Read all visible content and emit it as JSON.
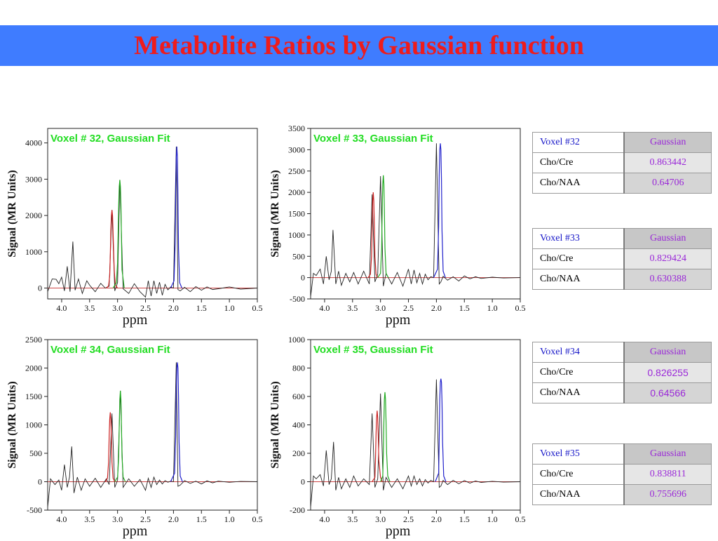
{
  "slide": {
    "title": "Metabolite Ratios by Gaussian function",
    "colors": {
      "banner": "#3f7cff",
      "title": "#ee1c1c",
      "fit_title": "#22dd22",
      "cho_peak": "#cc2222",
      "cre_peak": "#22aa22",
      "naa_peak": "#2222cc",
      "baseline": "#cc4444"
    }
  },
  "chart_data": [
    {
      "type": "line",
      "title": "Voxel # 32, Gaussian Fit",
      "xlabel": "ppm",
      "ylabel": "Signal (MR Units)",
      "xlim": [
        4.25,
        0.5
      ],
      "x_reversed": true,
      "ylim": [
        -300,
        4400
      ],
      "yticks": [
        0,
        1000,
        2000,
        3000,
        4000
      ],
      "xticks": [
        4.0,
        3.5,
        3.0,
        2.5,
        2.0,
        1.5,
        1.0,
        0.5
      ],
      "series": [
        {
          "x": [
            4.25,
            4.17,
            4.1,
            4.05,
            4.0,
            3.95,
            3.9,
            3.85,
            3.8,
            3.76,
            3.7,
            3.63,
            3.55,
            3.5,
            3.4,
            3.3,
            3.22,
            3.15,
            3.1,
            3.05,
            3.0,
            2.96,
            2.9,
            2.8,
            2.7,
            2.6,
            2.5,
            2.45,
            2.4,
            2.35,
            2.3,
            2.25,
            2.2,
            2.15,
            2.1,
            2.05,
            2.0,
            1.95,
            1.92,
            1.88,
            1.8,
            1.7,
            1.6,
            1.5,
            1.4,
            1.3,
            1.2,
            1.0,
            0.8,
            0.5
          ],
          "y": [
            -100,
            250,
            240,
            120,
            300,
            -80,
            600,
            -100,
            1280,
            -60,
            250,
            -150,
            200,
            80,
            -100,
            130,
            0,
            50,
            2150,
            -80,
            150,
            2980,
            -20,
            -150,
            120,
            -100,
            -250,
            200,
            -220,
            200,
            -150,
            160,
            -200,
            100,
            -50,
            30,
            0,
            3900,
            -40,
            -80,
            20,
            -100,
            40,
            -60,
            30,
            -40,
            -20,
            30,
            -30,
            0
          ]
        },
        {
          "x": [
            3.2,
            3.16,
            3.14,
            3.13,
            3.12,
            3.11,
            3.1,
            3.09,
            3.08,
            3.06,
            3.04,
            3.0
          ],
          "y": [
            0,
            60,
            350,
            900,
            1600,
            2000,
            2150,
            2000,
            1500,
            500,
            80,
            0
          ]
        },
        {
          "x": [
            3.08,
            3.02,
            3.0,
            2.99,
            2.98,
            2.97,
            2.96,
            2.95,
            2.94,
            2.93,
            2.92,
            2.88
          ],
          "y": [
            0,
            150,
            700,
            1500,
            2300,
            2800,
            2980,
            2800,
            2300,
            1400,
            500,
            0
          ]
        },
        {
          "x": [
            2.05,
            1.99,
            1.97,
            1.96,
            1.95,
            1.94,
            1.93,
            1.92,
            1.91,
            1.89,
            1.85
          ],
          "y": [
            0,
            200,
            1200,
            2600,
            3600,
            3900,
            3600,
            2500,
            1100,
            150,
            0
          ]
        }
      ]
    },
    {
      "type": "line",
      "title": "Voxel # 33, Gaussian Fit",
      "xlabel": "ppm",
      "ylabel": "Signal (MR Units)",
      "xlim": [
        4.25,
        0.5
      ],
      "x_reversed": true,
      "ylim": [
        -500,
        3500
      ],
      "yticks": [
        -500,
        0,
        500,
        1000,
        1500,
        2000,
        2500,
        3000,
        3500
      ],
      "xticks": [
        4.0,
        3.5,
        3.0,
        2.5,
        2.0,
        1.5,
        1.0,
        0.5
      ],
      "series": [
        {
          "x": [
            4.25,
            4.2,
            4.15,
            4.08,
            4.02,
            3.97,
            3.92,
            3.88,
            3.85,
            3.8,
            3.75,
            3.7,
            3.62,
            3.55,
            3.48,
            3.4,
            3.3,
            3.2,
            3.15,
            3.1,
            3.05,
            3.0,
            2.95,
            2.9,
            2.8,
            2.7,
            2.6,
            2.5,
            2.45,
            2.4,
            2.35,
            2.3,
            2.25,
            2.2,
            2.15,
            2.1,
            2.05,
            2.0,
            1.95,
            1.92,
            1.88,
            1.8,
            1.7,
            1.6,
            1.5,
            1.4,
            1.3,
            1.2,
            1.0,
            0.8,
            0.5
          ],
          "y": [
            -450,
            100,
            50,
            200,
            -150,
            500,
            -50,
            150,
            1120,
            -150,
            150,
            -180,
            100,
            -100,
            120,
            -150,
            150,
            -150,
            1950,
            -100,
            80,
            2380,
            -200,
            100,
            -150,
            120,
            -200,
            200,
            -150,
            180,
            -120,
            100,
            -150,
            80,
            -50,
            20,
            0,
            3150,
            -150,
            -100,
            30,
            -60,
            20,
            -80,
            40,
            -30,
            20,
            -20,
            10,
            -10,
            0
          ]
        },
        {
          "x": [
            3.22,
            3.18,
            3.16,
            3.15,
            3.14,
            3.13,
            3.12,
            3.11,
            3.1,
            3.08,
            3.05
          ],
          "y": [
            0,
            80,
            500,
            1200,
            1800,
            2000,
            1800,
            1200,
            500,
            80,
            0
          ]
        },
        {
          "x": [
            3.05,
            3.0,
            2.98,
            2.97,
            2.96,
            2.95,
            2.94,
            2.93,
            2.92,
            2.9,
            2.86
          ],
          "y": [
            0,
            100,
            700,
            1600,
            2200,
            2400,
            2200,
            1600,
            700,
            100,
            0
          ]
        },
        {
          "x": [
            2.05,
            1.98,
            1.96,
            1.95,
            1.94,
            1.93,
            1.92,
            1.91,
            1.9,
            1.88,
            1.84
          ],
          "y": [
            0,
            200,
            1200,
            2400,
            3000,
            3150,
            3000,
            2300,
            1100,
            150,
            0
          ]
        }
      ]
    },
    {
      "type": "line",
      "title": "Voxel # 34, Gaussian Fit",
      "xlabel": "ppm",
      "ylabel": "Signal (MR Units)",
      "xlim": [
        4.25,
        0.5
      ],
      "x_reversed": true,
      "ylim": [
        -500,
        2500
      ],
      "yticks": [
        -500,
        0,
        500,
        1000,
        1500,
        2000,
        2500
      ],
      "xticks": [
        4.0,
        3.5,
        3.0,
        2.5,
        2.0,
        1.5,
        1.0,
        0.5
      ],
      "series": [
        {
          "x": [
            4.25,
            4.2,
            4.12,
            4.05,
            4.0,
            3.95,
            3.9,
            3.86,
            3.82,
            3.78,
            3.72,
            3.65,
            3.58,
            3.5,
            3.4,
            3.3,
            3.2,
            3.15,
            3.1,
            3.05,
            3.0,
            2.95,
            2.9,
            2.8,
            2.7,
            2.6,
            2.5,
            2.45,
            2.4,
            2.35,
            2.3,
            2.25,
            2.2,
            2.15,
            2.1,
            2.05,
            2.0,
            1.95,
            1.92,
            1.88,
            1.8,
            1.7,
            1.6,
            1.5,
            1.4,
            1.3,
            1.2,
            1.0,
            0.8,
            0.5
          ],
          "y": [
            -450,
            50,
            -50,
            30,
            -150,
            300,
            -100,
            80,
            620,
            -200,
            80,
            -150,
            50,
            -80,
            60,
            -100,
            50,
            -50,
            1200,
            -100,
            30,
            1600,
            -100,
            50,
            -80,
            40,
            -150,
            60,
            -100,
            80,
            -50,
            30,
            -40,
            20,
            -10,
            10,
            0,
            2100,
            -80,
            -60,
            20,
            -30,
            10,
            -40,
            15,
            -20,
            10,
            -10,
            5,
            0
          ]
        },
        {
          "x": [
            3.22,
            3.18,
            3.16,
            3.15,
            3.14,
            3.13,
            3.12,
            3.11,
            3.1,
            3.08,
            3.05
          ],
          "y": [
            0,
            60,
            350,
            800,
            1100,
            1220,
            1100,
            800,
            350,
            60,
            0
          ]
        },
        {
          "x": [
            3.05,
            3.0,
            2.98,
            2.97,
            2.96,
            2.95,
            2.94,
            2.93,
            2.92,
            2.9,
            2.86
          ],
          "y": [
            0,
            80,
            450,
            1000,
            1450,
            1600,
            1450,
            1000,
            450,
            80,
            0
          ]
        },
        {
          "x": [
            2.05,
            1.98,
            1.96,
            1.95,
            1.94,
            1.93,
            1.92,
            1.91,
            1.9,
            1.88,
            1.84
          ],
          "y": [
            0,
            150,
            800,
            1600,
            2000,
            2100,
            2000,
            1500,
            700,
            100,
            0
          ]
        }
      ]
    },
    {
      "type": "line",
      "title": "Voxel # 35, Gaussian Fit",
      "xlabel": "ppm",
      "ylabel": "Signal (MR Units)",
      "xlim": [
        4.25,
        0.5
      ],
      "x_reversed": true,
      "ylim": [
        -200,
        1000
      ],
      "yticks": [
        -200,
        0,
        200,
        400,
        600,
        800,
        1000
      ],
      "xticks": [
        4.0,
        3.5,
        3.0,
        2.5,
        2.0,
        1.5,
        1.0,
        0.5
      ],
      "series": [
        {
          "x": [
            4.25,
            4.2,
            4.15,
            4.08,
            4.02,
            3.97,
            3.92,
            3.88,
            3.84,
            3.8,
            3.75,
            3.7,
            3.62,
            3.55,
            3.48,
            3.4,
            3.3,
            3.2,
            3.15,
            3.1,
            3.05,
            3.0,
            2.95,
            2.9,
            2.8,
            2.7,
            2.6,
            2.5,
            2.45,
            2.4,
            2.35,
            2.3,
            2.25,
            2.2,
            2.15,
            2.1,
            2.05,
            2.0,
            1.95,
            1.92,
            1.88,
            1.8,
            1.7,
            1.6,
            1.5,
            1.4,
            1.3,
            1.2,
            1.0,
            0.8,
            0.5
          ],
          "y": [
            -180,
            40,
            20,
            50,
            -30,
            220,
            -20,
            20,
            280,
            -60,
            30,
            -50,
            20,
            -40,
            40,
            -30,
            20,
            -20,
            480,
            -40,
            20,
            620,
            -60,
            30,
            -40,
            20,
            -50,
            40,
            -30,
            40,
            -20,
            20,
            -30,
            15,
            -10,
            10,
            0,
            720,
            -40,
            -30,
            10,
            -20,
            10,
            -15,
            8,
            -10,
            5,
            -5,
            3,
            -3,
            0
          ]
        },
        {
          "x": [
            3.15,
            3.1,
            3.09,
            3.08,
            3.07,
            3.06,
            3.05,
            3.04,
            3.03,
            3.0,
            2.97
          ],
          "y": [
            0,
            30,
            150,
            330,
            450,
            500,
            450,
            320,
            150,
            30,
            0
          ]
        },
        {
          "x": [
            3.0,
            2.96,
            2.95,
            2.94,
            2.93,
            2.92,
            2.91,
            2.9,
            2.89,
            2.87,
            2.83
          ],
          "y": [
            0,
            40,
            200,
            420,
            580,
            630,
            580,
            420,
            200,
            40,
            0
          ]
        },
        {
          "x": [
            2.02,
            1.96,
            1.95,
            1.94,
            1.93,
            1.92,
            1.91,
            1.9,
            1.89,
            1.87,
            1.83
          ],
          "y": [
            0,
            60,
            300,
            580,
            700,
            725,
            700,
            560,
            280,
            40,
            0
          ]
        }
      ]
    }
  ],
  "tables": [
    {
      "header": [
        "Voxel #32",
        "Gaussian"
      ],
      "rows": [
        [
          "Cho/Cre",
          "0.863442"
        ],
        [
          "Cho/NAA",
          "0.64706"
        ]
      ]
    },
    {
      "header": [
        "Voxel #33",
        "Gaussian"
      ],
      "rows": [
        [
          "Cho/Cre",
          "0.829424"
        ],
        [
          "Cho/NAA",
          "0.630388"
        ]
      ]
    },
    {
      "header": [
        "Voxel #34",
        "Gaussian"
      ],
      "rows": [
        [
          "Cho/Cre",
          "0.826255"
        ],
        [
          "Cho/NAA",
          "0.64566"
        ]
      ]
    },
    {
      "header": [
        "Voxel #35",
        "Gaussian"
      ],
      "rows": [
        [
          "Cho/Cre",
          "0.838811"
        ],
        [
          "Cho/NAA",
          "0.755696"
        ]
      ]
    }
  ]
}
